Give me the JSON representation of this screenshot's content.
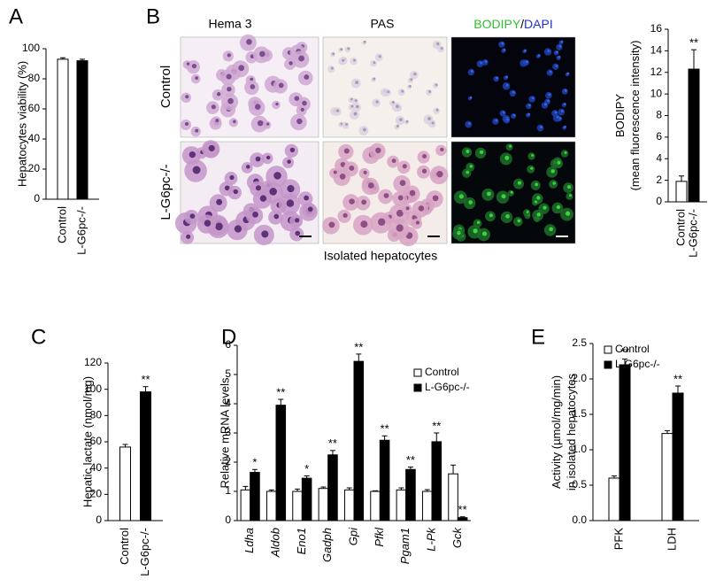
{
  "chart_data": [
    {
      "type": "bar",
      "panel_label": "A",
      "ylabel": [
        "Hepatocytes viability (%)"
      ],
      "categories": [
        "Control",
        "L-G6pc-/-"
      ],
      "values": [
        93,
        92
      ],
      "errors": [
        1,
        1
      ],
      "colors": [
        "#ffffff",
        "#000000"
      ],
      "significance": [
        null,
        null
      ],
      "ylim": [
        0,
        100
      ],
      "yticks": [
        0,
        20,
        40,
        60,
        80,
        100
      ]
    },
    {
      "type": "bar",
      "panel_label": "B",
      "ylabel": [
        "BODIPY",
        "(mean fluorescence intensity)"
      ],
      "categories": [
        "Control",
        "L-G6pc-/-"
      ],
      "values": [
        1.9,
        12.3
      ],
      "errors": [
        0.5,
        1.8
      ],
      "colors": [
        "#ffffff",
        "#000000"
      ],
      "significance": [
        null,
        "**"
      ],
      "ylim": [
        0,
        16
      ],
      "yticks": [
        0,
        2,
        4,
        6,
        8,
        10,
        12,
        14,
        16
      ]
    },
    {
      "type": "bar",
      "panel_label": "C",
      "ylabel": [
        "Hepatic lactate (nmol/mg)"
      ],
      "categories": [
        "Control",
        "L-G6pc-/-"
      ],
      "values": [
        56,
        98
      ],
      "errors": [
        2,
        4
      ],
      "colors": [
        "#ffffff",
        "#000000"
      ],
      "significance": [
        null,
        "**"
      ],
      "ylim": [
        0,
        120
      ],
      "yticks": [
        0,
        20,
        40,
        60,
        80,
        100,
        120
      ]
    },
    {
      "type": "grouped_bar",
      "panel_label": "D",
      "ylabel": [
        "Relative mRNA levels"
      ],
      "legend": "upper right",
      "categories": [
        "Ldha",
        "Aldob",
        "Eno1",
        "Gadph",
        "Gpi",
        "Pfkl",
        "Pgam1",
        "L-Pk",
        "Gck"
      ],
      "series": [
        {
          "name": "Control",
          "color": "#ffffff",
          "values": [
            1.05,
            1.0,
            1.0,
            1.1,
            1.05,
            1.0,
            1.05,
            1.0,
            1.6
          ],
          "errors": [
            0.12,
            0.05,
            0.08,
            0.05,
            0.07,
            0.02,
            0.07,
            0.06,
            0.3
          ]
        },
        {
          "name": "L-G6pc-/-",
          "color": "#000000",
          "values": [
            1.65,
            3.95,
            1.45,
            2.25,
            5.45,
            2.75,
            1.75,
            2.7,
            0.1
          ],
          "errors": [
            0.1,
            0.2,
            0.08,
            0.15,
            0.25,
            0.15,
            0.08,
            0.3,
            0.03
          ],
          "significance": [
            "*",
            "**",
            "*",
            "**",
            "**",
            "**",
            "**",
            "**",
            "**"
          ]
        }
      ],
      "ylim": [
        0,
        6
      ],
      "yticks": [
        0,
        1,
        2,
        3,
        4,
        5,
        6
      ]
    },
    {
      "type": "grouped_bar",
      "panel_label": "E",
      "ylabel": [
        "Activity (µmol/mg/min)",
        "in isolated hepatocytes"
      ],
      "legend": "upper left",
      "categories": [
        "PFK",
        "LDH"
      ],
      "series": [
        {
          "name": "Control",
          "color": "#ffffff",
          "values": [
            0.6,
            1.23
          ],
          "errors": [
            0.03,
            0.04
          ]
        },
        {
          "name": "L-G6pc-/-",
          "color": "#000000",
          "values": [
            2.2,
            1.8
          ],
          "errors": [
            0.08,
            0.1
          ],
          "significance": [
            "**",
            "**"
          ]
        }
      ],
      "ylim": [
        0,
        2.5
      ],
      "yticks": [
        {
          "value": 0,
          "label": "0.0"
        },
        0.5,
        {
          "value": 1,
          "label": "1.0"
        },
        1.5,
        {
          "value": 2,
          "label": "2.0"
        },
        2.5
      ]
    }
  ],
  "micrographs": {
    "column_titles": [
      [
        "Hema 3"
      ],
      [
        "PAS"
      ],
      [
        "BODIPY",
        "/",
        "DAPI"
      ]
    ],
    "row_titles": [
      "Control",
      "L-G6pc-/-"
    ],
    "caption": "Isolated hepatocytes"
  }
}
